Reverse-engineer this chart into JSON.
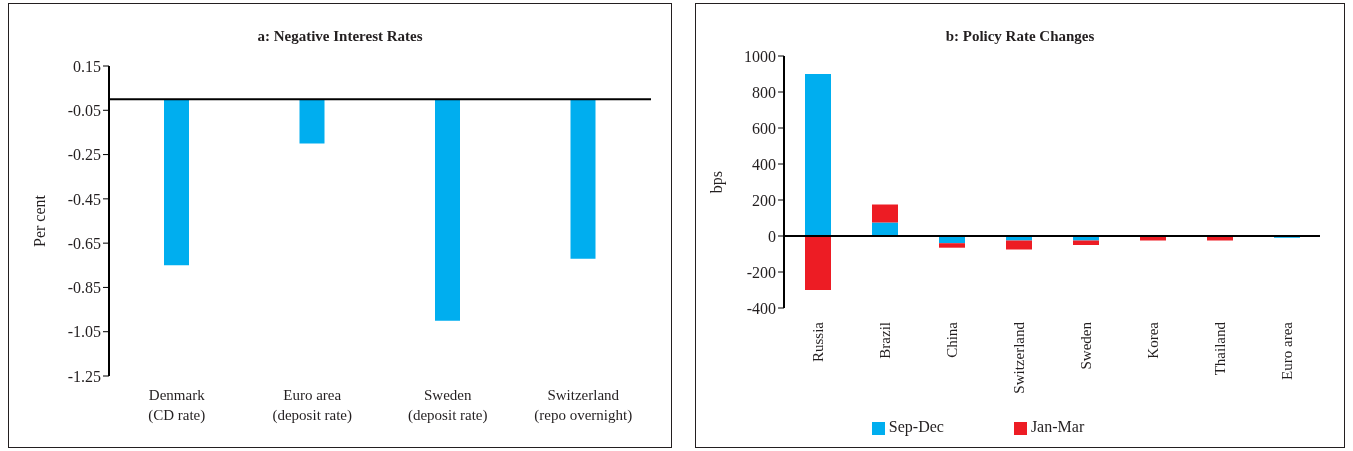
{
  "chart_data": [
    {
      "type": "bar",
      "title": "a: Negative Interest Rates",
      "ylabel": "Per cent",
      "categories": [
        "Denmark (CD rate)",
        "Euro area (deposit rate)",
        "Sweden (deposit rate)",
        "Switzerland (repo overnight)"
      ],
      "values": [
        -0.75,
        -0.2,
        -1.0,
        -0.72
      ],
      "color": "#00aeef",
      "ylim": [
        -1.25,
        0.15
      ],
      "yticks": [
        {
          "value": -1.25,
          "label": "-1.25"
        },
        {
          "value": -1.05,
          "label": "-1.05"
        },
        {
          "value": -0.85,
          "label": "-0.85"
        },
        {
          "value": -0.65,
          "label": "-0.65"
        },
        {
          "value": -0.45,
          "label": "-0.45"
        },
        {
          "value": -0.25,
          "label": "-0.25"
        },
        {
          "value": -0.05,
          "label": "-0.05"
        },
        0.15
      ],
      "legend": false
    },
    {
      "type": "bar",
      "title": "b: Policy Rate Changes",
      "ylabel": "bps",
      "stacked": true,
      "categories": [
        "Russia",
        "Brazil",
        "China",
        "Switzerland",
        "Sweden",
        "Korea",
        "Thailand",
        "Euro area"
      ],
      "series": [
        {
          "name": "Sep-Dec",
          "color": "#00aeef",
          "values": [
            900,
            75,
            -40,
            -25,
            -25,
            0,
            0,
            -10
          ]
        },
        {
          "name": "Jan-Mar",
          "color": "#ed1c24",
          "values": [
            -300,
            100,
            -25,
            -50,
            -25,
            -25,
            -25,
            0
          ]
        }
      ],
      "ylim": [
        -400,
        1000
      ],
      "yticks": [
        -400,
        -200,
        0,
        200,
        400,
        600,
        800,
        1000
      ],
      "legend": "bottom"
    }
  ]
}
